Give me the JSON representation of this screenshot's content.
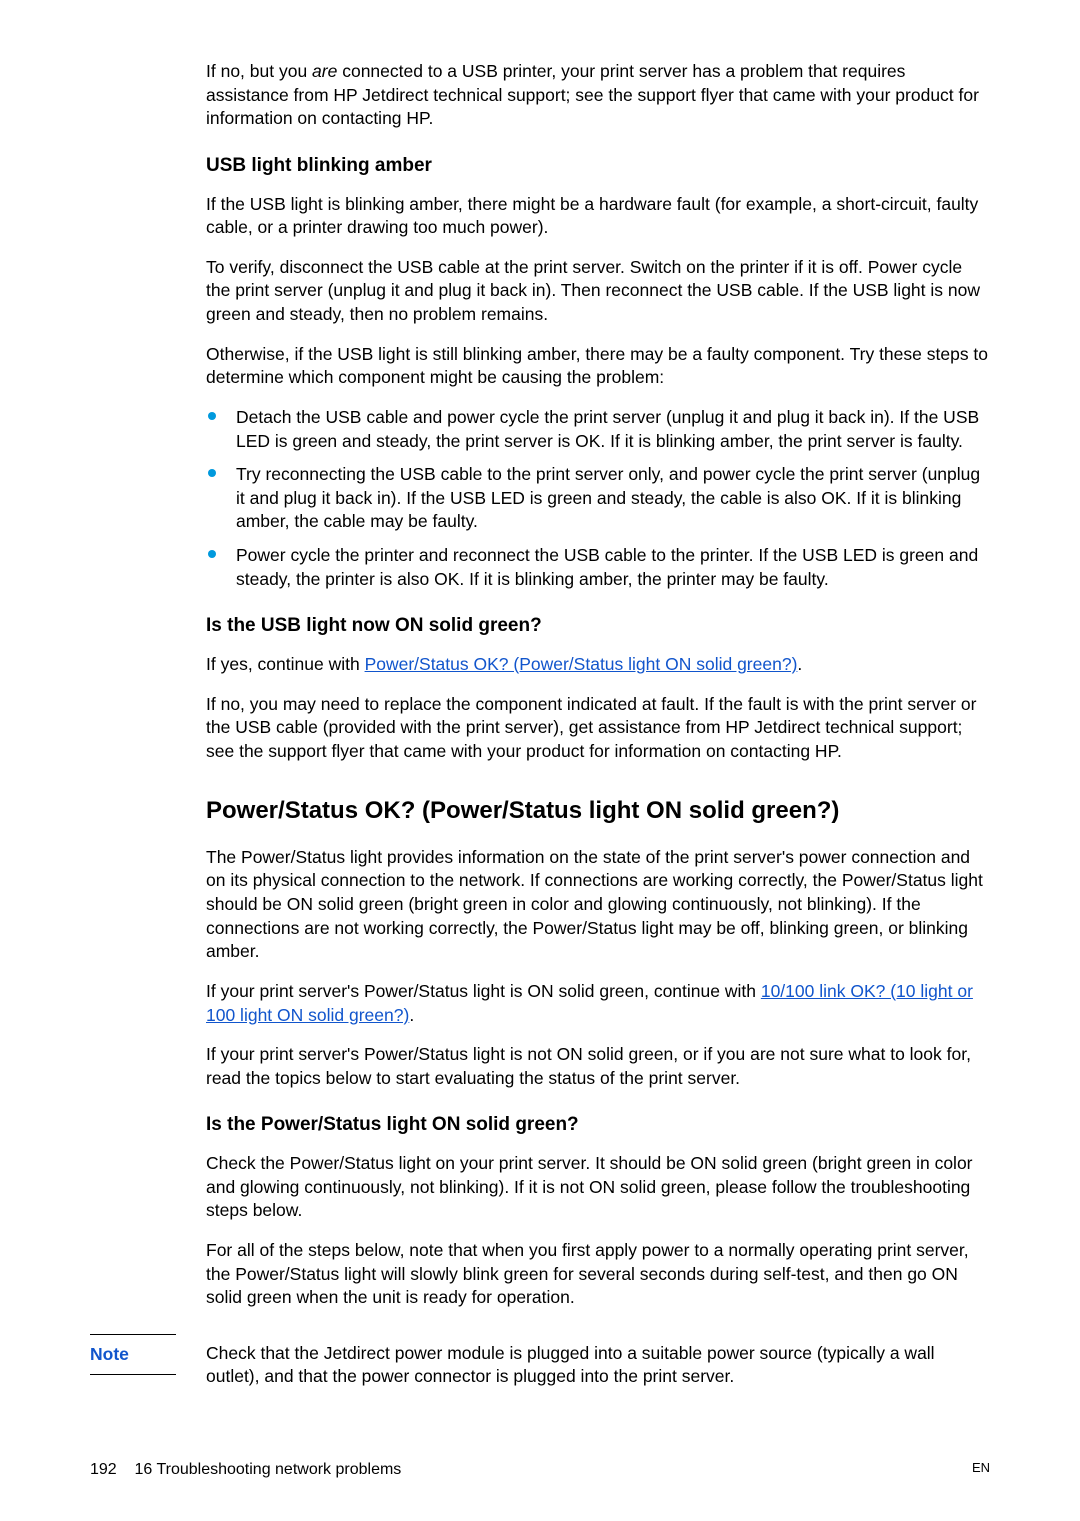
{
  "colors": {
    "link": "#1155cc",
    "bullet": "#0099dd",
    "text": "#000000",
    "bg": "#ffffff"
  },
  "p1_prefix": "If no, but you ",
  "p1_italic": "are",
  "p1_suffix": " connected to a USB printer, your print server has a problem that requires assistance from HP Jetdirect technical support; see the support flyer that came with your product for information on contacting HP.",
  "h3_1": "USB light blinking amber",
  "p2": "If the USB light is blinking amber, there might be a hardware fault (for example, a short-circuit, faulty cable, or a printer drawing too much power).",
  "p3": "To verify, disconnect the USB cable at the print server. Switch on the printer if it is off. Power cycle the print server (unplug it and plug it back in). Then reconnect the USB cable. If the USB light is now green and steady, then no problem remains.",
  "p4": "Otherwise, if the USB light is still blinking amber, there may be a faulty component. Try these steps to determine which component might be causing the problem:",
  "bul1": "Detach the USB cable and power cycle the print server (unplug it and plug it back in). If the USB LED is green and steady, the print server is OK. If it is blinking amber, the print server is faulty.",
  "bul2": "Try reconnecting the USB cable to the print server only, and power cycle the print server (unplug it and plug it back in). If the USB LED is green and steady, the cable is also OK. If it is blinking amber, the cable may be faulty.",
  "bul3": "Power cycle the printer and reconnect the USB cable to the printer. If the USB LED is green and steady, the printer is also OK. If it is blinking amber, the printer may be faulty.",
  "h3_2": "Is the USB light now ON solid green?",
  "p5_prefix": "If yes, continue with ",
  "p5_link": "Power/Status OK? (Power/Status light ON solid green?)",
  "p5_suffix": ".",
  "p6": "If no, you may need to replace the component indicated at fault. If the fault is with the print server or the USB cable (provided with the print server), get assistance from HP Jetdirect technical support; see the support flyer that came with your product for information on contacting HP.",
  "h2_1": "Power/Status OK? (Power/Status light ON solid green?)",
  "p7": "The Power/Status light provides information on the state of the print server's power connection and on its physical connection to the network. If connections are working correctly, the Power/Status light should be ON solid green (bright green in color and glowing continuously, not blinking). If the connections are not working correctly, the Power/Status light may be off, blinking green, or blinking amber.",
  "p8_prefix": "If your print server's Power/Status light is ON solid green, continue with ",
  "p8_link": "10/100 link OK? (10 light or 100 light ON solid green?)",
  "p8_suffix": ".",
  "p9": "If your print server's Power/Status light is not ON solid green, or if you are not sure what to look for, read the topics below to start evaluating the status of the print server.",
  "h3_3": "Is the Power/Status light ON solid green?",
  "p10": "Check the Power/Status light on your print server. It should be ON solid green (bright green in color and glowing continuously, not blinking). If it is not ON solid green, please follow the troubleshooting steps below.",
  "p11": "For all of the steps below, note that when you first apply power to a normally operating print server, the Power/Status light will slowly blink green for several seconds during self-test, and then go ON solid green when the unit is ready for operation.",
  "note_label": "Note",
  "note_text": "Check that the Jetdirect power module is plugged into a suitable power source (typically a wall outlet), and that the power connector is plugged into the print server.",
  "footer_left_page": "192",
  "footer_left_text": "16 Troubleshooting network problems",
  "footer_right": "EN"
}
